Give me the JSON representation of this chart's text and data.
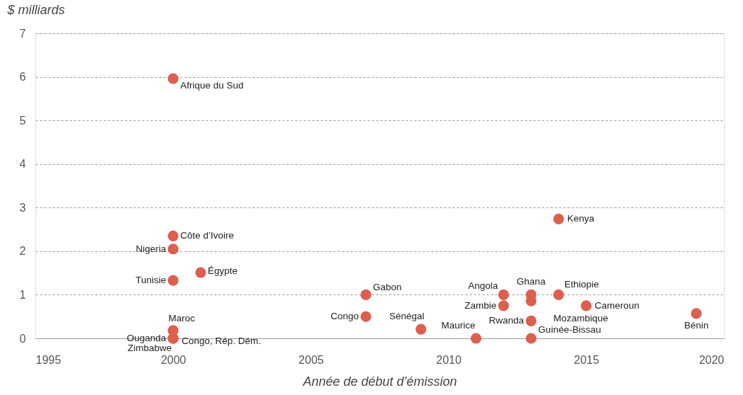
{
  "chart_data": {
    "type": "scatter",
    "xlabel": "Année de début d’émission",
    "ylabel": "$ milliards",
    "xlim": [
      1995,
      2020
    ],
    "xticks": [
      1995,
      2000,
      2005,
      2010,
      2015,
      2020
    ],
    "ylim": [
      0,
      7
    ],
    "yticks": [
      0,
      1,
      2,
      3,
      4,
      5,
      6,
      7
    ],
    "grid": "y",
    "marker": "circle",
    "series": [
      {
        "color": "#dd5f4e",
        "x": [
          2000,
          2000,
          2000,
          2000,
          2001,
          2000,
          2000,
          2000,
          2000,
          2007,
          2007,
          2009,
          2011,
          2012,
          2012,
          2013,
          2013,
          2013,
          2013,
          2014,
          2014,
          2015,
          2019
        ],
        "values": [
          5.96,
          2.35,
          2.05,
          1.33,
          1.51,
          0.18,
          0,
          0,
          0,
          1.0,
          0.5,
          0.21,
          0,
          1.0,
          0.75,
          1.0,
          0.86,
          0.4,
          0,
          2.74,
          1.0,
          0.75,
          0.57
        ]
      }
    ],
    "annotations": [
      {
        "text": "Afrique du Sud",
        "x": 2000,
        "y": 5.96
      },
      {
        "text": "Côte d’Ivoire",
        "x": 2000,
        "y": 2.35
      },
      {
        "text": "Nigeria",
        "x": 2000,
        "y": 2.05
      },
      {
        "text": "Tunisie",
        "x": 2000,
        "y": 1.33
      },
      {
        "text": "Égypte",
        "x": 2001,
        "y": 1.51
      },
      {
        "text": "Maroc",
        "x": 2000,
        "y": 0.18
      },
      {
        "text": "Ouganda",
        "x": 2000,
        "y": 0
      },
      {
        "text": "Zimbabwe",
        "x": 2000,
        "y": 0
      },
      {
        "text": "Congo, Rép. Dém.",
        "x": 2000,
        "y": 0
      },
      {
        "text": "Gabon",
        "x": 2007,
        "y": 1.0
      },
      {
        "text": "Congo",
        "x": 2007,
        "y": 0.5
      },
      {
        "text": "Sénégal",
        "x": 2009,
        "y": 0.21
      },
      {
        "text": "Maurice",
        "x": 2011,
        "y": 0
      },
      {
        "text": "Angola",
        "x": 2012,
        "y": 1.0
      },
      {
        "text": "Zambie",
        "x": 2012,
        "y": 0.75
      },
      {
        "text": "Ghana",
        "x": 2013,
        "y": 1.0
      },
      {
        "text": "Mozambique",
        "x": 2013,
        "y": 0.86
      },
      {
        "text": "Rwanda",
        "x": 2013,
        "y": 0.4
      },
      {
        "text": "Guinée-Bissau",
        "x": 2013,
        "y": 0
      },
      {
        "text": "Kenya",
        "x": 2014,
        "y": 2.74
      },
      {
        "text": "Ethiopie",
        "x": 2014,
        "y": 1.0
      },
      {
        "text": "Cameroun",
        "x": 2015,
        "y": 0.75
      },
      {
        "text": "Bénin",
        "x": 2019,
        "y": 0.57
      }
    ]
  }
}
